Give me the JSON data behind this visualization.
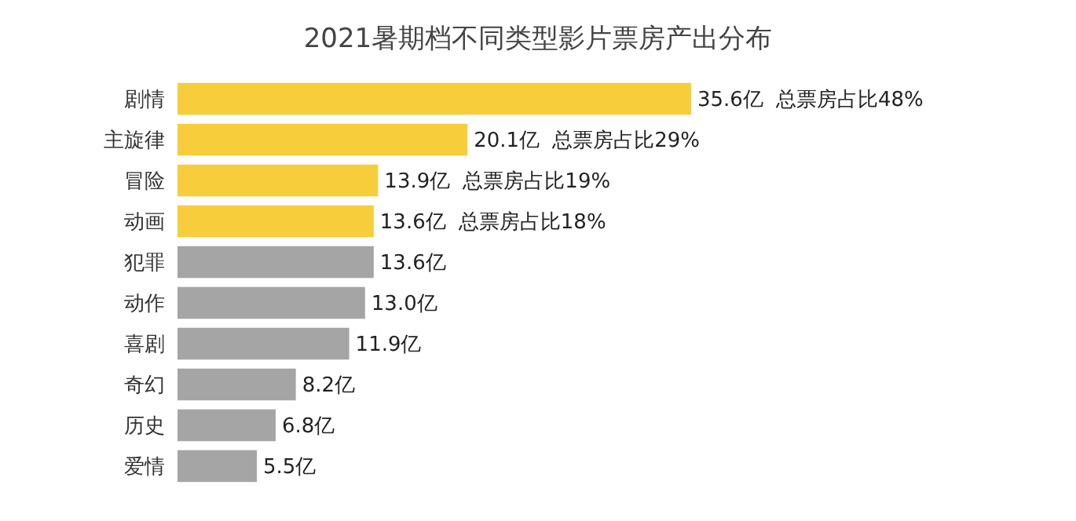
{
  "chart_data": {
    "type": "bar",
    "orientation": "horizontal",
    "title": "2021暑期档不同类型影片票房产出分布",
    "categories": [
      "剧情",
      "主旋律",
      "冒险",
      "动画",
      "犯罪",
      "动作",
      "喜剧",
      "奇幻",
      "历史",
      "爱情"
    ],
    "values": [
      35.6,
      20.1,
      13.9,
      13.6,
      13.6,
      13.0,
      11.9,
      8.2,
      6.8,
      5.5
    ],
    "value_labels": [
      "35.6亿",
      "20.1亿",
      "13.9亿",
      "13.6亿",
      "13.6亿",
      "13.0亿",
      "11.9亿",
      "8.2亿",
      "6.8亿",
      "5.5亿"
    ],
    "colors": [
      "#f8cd3c",
      "#f8cd3c",
      "#f8cd3c",
      "#f8cd3c",
      "#a5a5a5",
      "#a5a5a5",
      "#a5a5a5",
      "#a5a5a5",
      "#a5a5a5",
      "#a5a5a5"
    ],
    "annotations": [
      "总票房占比48%",
      "总票房占比29%",
      "总票房占比19%",
      "总票房占比18%"
    ]
  }
}
